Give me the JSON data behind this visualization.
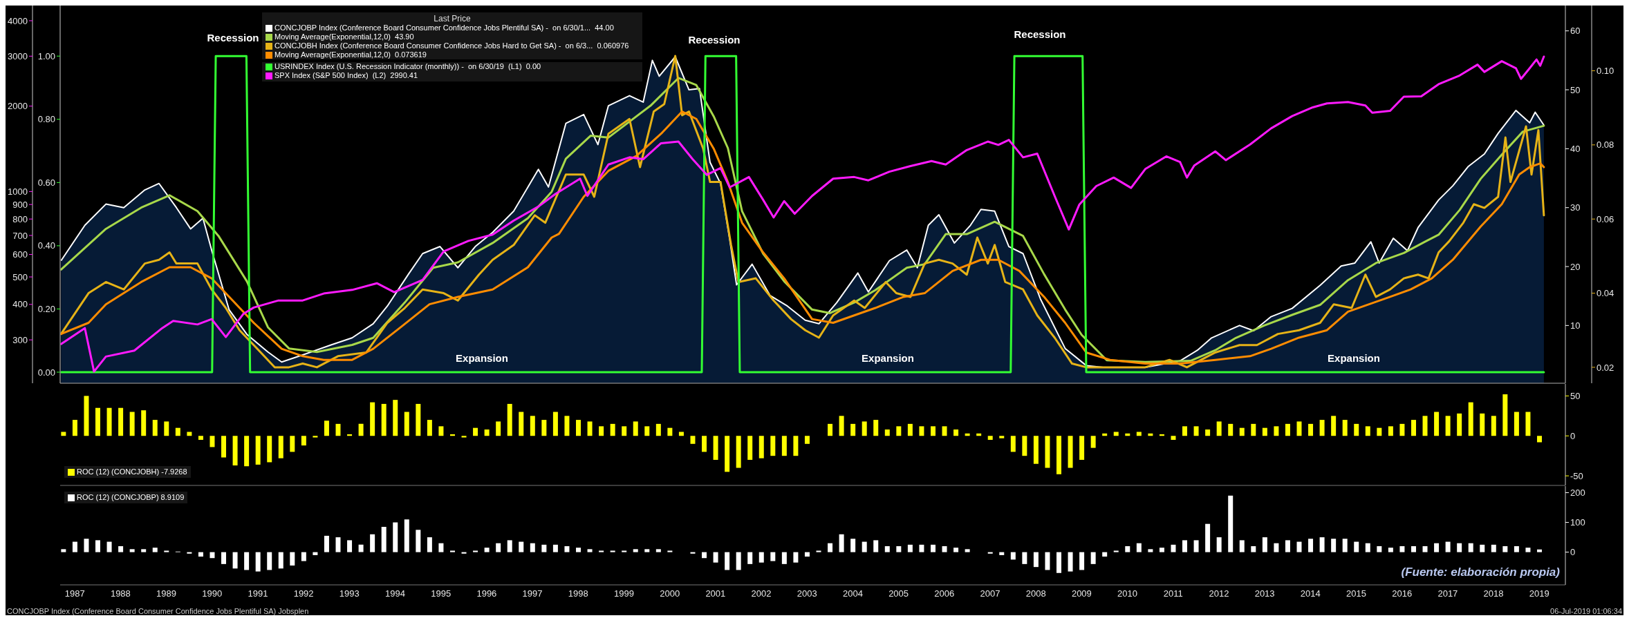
{
  "chart_data": [
    {
      "type": "area",
      "legend_title": "Last Price",
      "legend": "top left",
      "tick_labels": "y",
      "xlim": [
        1987.18,
        2020.07
      ],
      "ylim": [
        0.2,
        64.3
      ],
      "yticks": [
        10,
        20,
        30,
        40,
        50,
        60
      ],
      "y2lim": [
        0.0157,
        0.1176
      ],
      "y2ticks": [
        0.02,
        0.04,
        0.06,
        0.08,
        {
          "value": 0.1,
          "label": "0.10"
        }
      ],
      "series": [
        {
          "name": "CONCJOBP Index (Conference Board Consumer Confidence Jobs Plentiful SA) -  on 6/30/1...  44.00",
          "color": "#ffffff",
          "x": [
            1987.2,
            1987.72,
            1988.18,
            1988.57,
            1989.03,
            1989.34,
            1989.72,
            1990.03,
            1990.3,
            1990.49,
            1990.87,
            1991.26,
            1991.72,
            1992.02,
            1992.48,
            1993.1,
            1993.56,
            1994.02,
            1994.33,
            1994.79,
            1995.1,
            1995.48,
            1995.87,
            1996.25,
            1996.63,
            1997.09,
            1997.63,
            1997.85,
            1998.23,
            1998.62,
            1998.93,
            1999.16,
            1999.62,
            1999.92,
            2000.12,
            2000.27,
            2000.62,
            2000.92,
            2001.15,
            2001.38,
            2001.61,
            2001.81,
            2001.96,
            2002.3,
            2002.69,
            2003.07,
            2003.46,
            2003.76,
            2004.15,
            2004.61,
            2004.84,
            2005.3,
            2005.68,
            2005.91,
            2006.15,
            2006.38,
            2006.72,
            2007.07,
            2007.3,
            2007.6,
            2007.91,
            2008.22,
            2008.6,
            2009.14,
            2009.6,
            2009.97,
            2010.89,
            2011.65,
            2012.03,
            2012.34,
            2012.95,
            2013.26,
            2013.64,
            2014.1,
            2014.71,
            2015.17,
            2015.47,
            2015.82,
            2016.0,
            2016.31,
            2016.62,
            2016.85,
            2017.3,
            2017.61,
            2017.95,
            2018.3,
            2018.6,
            2018.99,
            2019.29,
            2019.41,
            2019.6
          ],
          "values": [
            21,
            27,
            30.6,
            30,
            33,
            34.1,
            30,
            26.4,
            28.2,
            22.8,
            12.7,
            8.5,
            5.5,
            3.8,
            5,
            6.7,
            7.9,
            10.3,
            13.3,
            18.7,
            22.2,
            23.4,
            19.8,
            23.4,
            25.8,
            29.4,
            36.5,
            33.5,
            44.3,
            45.8,
            40.7,
            47.3,
            49,
            47.9,
            55,
            52.3,
            55.6,
            50,
            50.2,
            37.7,
            34.1,
            24.6,
            16.9,
            20.4,
            15.1,
            13.3,
            10.9,
            10.3,
            13.9,
            18.9,
            15.7,
            21,
            22.8,
            19.8,
            27,
            28.8,
            24,
            27,
            29.7,
            29.4,
            23.4,
            22.2,
            14.5,
            6.1,
            3.2,
            2.9,
            2.9,
            4,
            5.8,
            7.9,
            10,
            9.1,
            11.5,
            12.9,
            16.8,
            20.1,
            20.6,
            24.2,
            20.6,
            24.8,
            22.7,
            26.6,
            31.3,
            33.7,
            37,
            39.1,
            42.6,
            46.5,
            44.4,
            46.2,
            44
          ]
        },
        {
          "type": "line",
          "name": "Moving Average(Exponential,12,0)  43.90",
          "color": "#a8d84a",
          "x": [
            1987.2,
            1988.18,
            1988.95,
            1989.57,
            1990.18,
            1990.64,
            1991.26,
            1991.72,
            1992.18,
            1992.79,
            1993.56,
            1994.02,
            1994.71,
            1995.33,
            1995.87,
            1996.63,
            1997.4,
            1997.92,
            1998.23,
            1998.77,
            1999.16,
            1999.62,
            2000.08,
            2000.69,
            2001.08,
            2001.46,
            2001.77,
            2002.08,
            2002.54,
            2003.0,
            2003.61,
            2004.0,
            2004.53,
            2004.99,
            2005.68,
            2006.07,
            2006.53,
            2006.99,
            2007.6,
            2008.22,
            2008.68,
            2009.14,
            2009.5,
            2010.05,
            2010.89,
            2011.88,
            2012.42,
            2012.87,
            2013.49,
            2014.1,
            2014.71,
            2015.32,
            2015.93,
            2016.54,
            2017.0,
            2017.3,
            2017.76,
            2018.22,
            2018.68,
            2019.14,
            2019.6
          ],
          "values": [
            19.5,
            26.4,
            30,
            32.1,
            29.4,
            25.2,
            17.5,
            9.7,
            6.1,
            5.5,
            6.7,
            7.9,
            13.9,
            19.8,
            20.7,
            24,
            28.2,
            32.7,
            38.3,
            42.2,
            41.9,
            44.6,
            47.3,
            52,
            50.8,
            45.5,
            40.1,
            29.4,
            22.2,
            17.5,
            12.7,
            12.1,
            13.9,
            16,
            19.8,
            20.4,
            25.5,
            25.5,
            27.6,
            25.2,
            18.7,
            12.7,
            8.4,
            4.1,
            3.8,
            4,
            5.8,
            7.9,
            10,
            11.8,
            13.5,
            17.7,
            20.6,
            22.3,
            24.2,
            25.4,
            29.6,
            34.9,
            39,
            42.9,
            43.9
          ]
        },
        {
          "type": "line",
          "axis": "y2",
          "name": "CONCJOBH Index (Conference Board Consumer Confidence Jobs Hard to Get SA) -  on 6/3...  0.060976",
          "color": "#e6b317",
          "x": [
            1987.2,
            1987.8,
            1988.18,
            1988.57,
            1989.03,
            1989.34,
            1989.57,
            1989.72,
            1990.18,
            1990.49,
            1990.8,
            1991.1,
            1991.41,
            1991.87,
            1992.18,
            1992.48,
            1992.79,
            1993.25,
            1993.87,
            1994.33,
            1994.71,
            1995.1,
            1995.56,
            1995.87,
            1996.33,
            1996.63,
            1997.09,
            1997.55,
            1997.78,
            1998.23,
            1998.62,
            1998.85,
            1999.16,
            1999.62,
            1999.85,
            2000.15,
            2000.38,
            2000.62,
            2000.77,
            2000.92,
            2001.23,
            2001.38,
            2001.61,
            2001.84,
            2002.0,
            2002.38,
            2002.77,
            2003.15,
            2003.46,
            2003.76,
            2004.07,
            2004.53,
            2004.76,
            2005.22,
            2005.45,
            2005.76,
            2006.07,
            2006.38,
            2006.68,
            2006.99,
            2007.22,
            2007.45,
            2007.6,
            2007.83,
            2008.22,
            2008.53,
            2008.91,
            2009.29,
            2009.6,
            2010.12,
            2010.89,
            2011.42,
            2011.8,
            2012.42,
            2012.95,
            2013.33,
            2013.79,
            2014.25,
            2014.71,
            2015.01,
            2015.4,
            2015.7,
            2015.93,
            2016.24,
            2016.54,
            2016.85,
            2017.08,
            2017.3,
            2017.53,
            2017.84,
            2018.07,
            2018.3,
            2018.6,
            2018.76,
            2018.87,
            2019.21,
            2019.33,
            2019.48,
            2019.6
          ],
          "values": [
            0.029,
            0.04,
            0.043,
            0.041,
            0.048,
            0.049,
            0.051,
            0.048,
            0.048,
            0.041,
            0.036,
            0.03,
            0.026,
            0.02,
            0.02,
            0.021,
            0.02,
            0.023,
            0.024,
            0.032,
            0.036,
            0.041,
            0.04,
            0.038,
            0.045,
            0.049,
            0.053,
            0.061,
            0.059,
            0.072,
            0.072,
            0.066,
            0.083,
            0.087,
            0.074,
            0.089,
            0.091,
            0.104,
            0.088,
            0.089,
            0.079,
            0.07,
            0.07,
            0.053,
            0.043,
            0.044,
            0.038,
            0.033,
            0.03,
            0.028,
            0.034,
            0.038,
            0.036,
            0.043,
            0.04,
            0.039,
            0.048,
            0.049,
            0.048,
            0.045,
            0.055,
            0.048,
            0.053,
            0.043,
            0.041,
            0.034,
            0.028,
            0.021,
            0.02,
            0.02,
            0.02,
            0.022,
            0.02,
            0.024,
            0.026,
            0.026,
            0.029,
            0.03,
            0.032,
            0.037,
            0.036,
            0.045,
            0.039,
            0.041,
            0.044,
            0.045,
            0.044,
            0.051,
            0.054,
            0.059,
            0.064,
            0.063,
            0.066,
            0.082,
            0.07,
            0.085,
            0.072,
            0.084,
            0.061
          ]
        },
        {
          "type": "line",
          "axis": "y2",
          "name": "Moving Average(Exponential,12,0)  0.073619",
          "color": "#ff8c00",
          "x": [
            1987.2,
            1987.8,
            1988.18,
            1988.95,
            1989.57,
            1990.03,
            1990.49,
            1990.95,
            1991.41,
            1992.02,
            1992.48,
            1992.94,
            1993.56,
            1994.02,
            1994.64,
            1995.25,
            1995.87,
            1996.63,
            1997.4,
            1997.92,
            1998.08,
            1998.62,
            1999.16,
            1999.77,
            2000.31,
            2000.77,
            2001.08,
            2001.46,
            2001.77,
            2002.08,
            2002.54,
            2003.0,
            2003.61,
            2004.07,
            2004.53,
            2004.99,
            2005.61,
            2006.07,
            2006.68,
            2007.3,
            2007.68,
            2008.14,
            2008.68,
            2009.14,
            2009.6,
            2010.12,
            2010.89,
            2011.65,
            2012.42,
            2013.18,
            2013.64,
            2014.25,
            2014.86,
            2015.32,
            2015.78,
            2016.24,
            2016.69,
            2017.15,
            2017.61,
            2018.22,
            2018.68,
            2019.06,
            2019.29,
            2019.52,
            2019.6
          ],
          "values": [
            0.029,
            0.032,
            0.037,
            0.043,
            0.047,
            0.047,
            0.044,
            0.038,
            0.032,
            0.025,
            0.023,
            0.022,
            0.022,
            0.025,
            0.031,
            0.037,
            0.039,
            0.041,
            0.047,
            0.055,
            0.056,
            0.066,
            0.073,
            0.077,
            0.083,
            0.089,
            0.087,
            0.079,
            0.07,
            0.059,
            0.051,
            0.044,
            0.033,
            0.032,
            0.034,
            0.036,
            0.039,
            0.04,
            0.046,
            0.049,
            0.049,
            0.046,
            0.039,
            0.032,
            0.024,
            0.022,
            0.021,
            0.021,
            0.022,
            0.023,
            0.025,
            0.028,
            0.03,
            0.035,
            0.037,
            0.039,
            0.041,
            0.044,
            0.049,
            0.058,
            0.064,
            0.072,
            0.074,
            0.075,
            0.074
          ]
        }
      ]
    },
    {
      "type": "line",
      "legend": "top left",
      "tick_labels": "y",
      "log": "y2",
      "xlim": [
        1987.18,
        2020.07
      ],
      "ylim": [
        -0.035,
        1.16
      ],
      "yticks": [
        {
          "value": 0,
          "label": "0.00"
        },
        {
          "value": 0.2,
          "label": "0.20"
        },
        {
          "value": 0.4,
          "label": "0.40"
        },
        {
          "value": 0.6,
          "label": "0.60"
        },
        {
          "value": 0.8,
          "label": "0.80"
        },
        {
          "value": 1,
          "label": "1.00"
        }
      ],
      "y2lim": [
        211,
        4525
      ],
      "y2ticks": [
        300,
        400,
        500,
        600,
        700,
        800,
        900,
        1000,
        2000,
        3000,
        4000
      ],
      "annotations": [
        "Recession",
        "Recession",
        "Recession",
        "Expansion",
        "Expansion",
        "Expansion"
      ],
      "series": [
        {
          "name": "USRINDEX Index (U.S. Recession Indicator (monthly)) -  on 6/30/19  (L1)  0.00",
          "color": "#33ff33",
          "x": [
            1987.2,
            1990.5,
            1990.58,
            1991.25,
            1991.33,
            2001.2,
            2001.28,
            2001.95,
            2002.03,
            2007.95,
            2008.03,
            2009.52,
            2009.6,
            2019.6
          ],
          "values": [
            0,
            0,
            1,
            1,
            0,
            0,
            1,
            1,
            0,
            0,
            1,
            1,
            0,
            0
          ]
        },
        {
          "axis": "y2",
          "name": "SPX Index (S&P 500 Index)  (L2)  2990.41",
          "color": "#ff1aff",
          "x": [
            1987.2,
            1987.72,
            1987.92,
            1988.18,
            1988.8,
            1989.41,
            1989.65,
            1990.18,
            1990.49,
            1990.8,
            1991.18,
            1991.41,
            1991.95,
            1992.48,
            1992.94,
            1993.56,
            1994.1,
            1994.48,
            1995.1,
            1995.56,
            1996.1,
            1996.63,
            1997.09,
            1997.63,
            1998.0,
            1998.54,
            1998.7,
            1999.16,
            1999.62,
            1999.92,
            2000.31,
            2000.69,
            2001.0,
            2001.31,
            2001.61,
            2001.81,
            2002.23,
            2002.54,
            2002.77,
            2003.0,
            2003.23,
            2003.61,
            2004.07,
            2004.53,
            2004.84,
            2005.3,
            2005.76,
            2006.22,
            2006.53,
            2006.99,
            2007.45,
            2007.68,
            2007.91,
            2008.22,
            2008.53,
            2008.91,
            2009.22,
            2009.45,
            2009.82,
            2010.2,
            2010.58,
            2010.89,
            2011.35,
            2011.65,
            2011.8,
            2011.96,
            2012.42,
            2012.65,
            2013.18,
            2013.64,
            2014.1,
            2014.55,
            2014.86,
            2015.32,
            2015.7,
            2015.85,
            2016.24,
            2016.54,
            2016.92,
            2017.3,
            2017.76,
            2018.15,
            2018.3,
            2018.68,
            2018.99,
            2019.1,
            2019.29,
            2019.44,
            2019.52,
            2019.6
          ],
          "values": [
            290,
            330,
            232,
            262,
            275,
            330,
            350,
            340,
            355,
            307,
            370,
            390,
            413,
            413,
            437,
            450,
            475,
            442,
            488,
            615,
            670,
            705,
            790,
            885,
            980,
            1110,
            965,
            1245,
            1320,
            1300,
            1480,
            1500,
            1300,
            1145,
            1210,
            1035,
            1125,
            935,
            810,
            925,
            835,
            965,
            1110,
            1125,
            1095,
            1175,
            1230,
            1280,
            1245,
            1400,
            1500,
            1460,
            1520,
            1320,
            1360,
            965,
            735,
            900,
            1045,
            1120,
            1030,
            1200,
            1330,
            1270,
            1120,
            1235,
            1385,
            1290,
            1465,
            1670,
            1845,
            1980,
            2045,
            2068,
            2010,
            1895,
            1925,
            2160,
            2165,
            2390,
            2565,
            2800,
            2640,
            2880,
            2720,
            2495,
            2720,
            2920,
            2775,
            2990
          ]
        }
      ]
    },
    {
      "type": "bar",
      "legend": "bottom left",
      "tick_labels": "y",
      "xlim": [
        1987.18,
        2020.07
      ],
      "x": [
        1987.25,
        1987.5,
        1987.75,
        1988,
        1988.25,
        1988.5,
        1988.75,
        1989,
        1989.25,
        1989.5,
        1989.75,
        1990,
        1990.25,
        1990.5,
        1990.75,
        1991,
        1991.25,
        1991.5,
        1991.75,
        1992,
        1992.25,
        1992.5,
        1992.75,
        1993,
        1993.25,
        1993.5,
        1993.75,
        1994,
        1994.25,
        1994.5,
        1994.75,
        1995,
        1995.25,
        1995.5,
        1995.75,
        1996,
        1996.25,
        1996.5,
        1996.75,
        1997,
        1997.25,
        1997.5,
        1997.75,
        1998,
        1998.25,
        1998.5,
        1998.75,
        1999,
        1999.25,
        1999.5,
        1999.75,
        2000,
        2000.25,
        2000.5,
        2000.75,
        2001,
        2001.25,
        2001.5,
        2001.75,
        2002,
        2002.25,
        2002.5,
        2002.75,
        2003,
        2003.25,
        2003.5,
        2003.75,
        2004,
        2004.25,
        2004.5,
        2004.75,
        2005,
        2005.25,
        2005.5,
        2005.75,
        2006,
        2006.25,
        2006.5,
        2006.75,
        2007,
        2007.25,
        2007.5,
        2007.75,
        2008,
        2008.25,
        2008.5,
        2008.75,
        2009,
        2009.25,
        2009.5,
        2009.75,
        2010,
        2010.25,
        2010.5,
        2010.75,
        2011,
        2011.25,
        2011.5,
        2011.75,
        2012,
        2012.25,
        2012.5,
        2012.75,
        2013,
        2013.25,
        2013.5,
        2013.75,
        2014,
        2014.25,
        2014.5,
        2014.75,
        2015,
        2015.25,
        2015.5,
        2015.75,
        2016,
        2016.25,
        2016.5,
        2016.75,
        2017,
        2017.25,
        2017.5,
        2017.75,
        2018,
        2018.25,
        2018.5,
        2018.75,
        2019,
        2019.25,
        2019.5
      ],
      "ylim": [
        -62,
        65
      ],
      "yticks": [
        -50,
        0,
        50
      ],
      "series": [
        {
          "name": "ROC (12) (CONCJOBH) -7.9268",
          "color": "#ffff00",
          "values": [
            5,
            20,
            50,
            35,
            35,
            35,
            30,
            32,
            20,
            18,
            10,
            5,
            -5,
            -14,
            -27,
            -37,
            -38,
            -36,
            -33,
            -28,
            -20,
            -12,
            -2,
            19,
            15,
            2,
            15,
            42,
            40,
            45,
            30,
            40,
            20,
            12,
            2,
            -2,
            10,
            8,
            18,
            40,
            30,
            25,
            20,
            30,
            25,
            20,
            18,
            12,
            15,
            12,
            18,
            12,
            15,
            10,
            5,
            -10,
            -20,
            -30,
            -45,
            -40,
            -30,
            -28,
            -25,
            -25,
            -25,
            -10,
            0,
            15,
            25,
            15,
            18,
            20,
            8,
            12,
            15,
            12,
            12,
            12,
            8,
            3,
            3,
            -5,
            -3,
            -20,
            -25,
            -35,
            -40,
            -48,
            -40,
            -30,
            -15,
            3,
            5,
            3,
            5,
            3,
            2,
            -5,
            12,
            12,
            8,
            18,
            15,
            10,
            15,
            10,
            12,
            15,
            18,
            15,
            20,
            25,
            20,
            15,
            12,
            10,
            12,
            15,
            20,
            25,
            30,
            25,
            28,
            42,
            28,
            25,
            52,
            30,
            30,
            -8
          ]
        }
      ]
    },
    {
      "type": "bar",
      "legend": "top left",
      "xlim": [
        1987.18,
        2020.07
      ],
      "xticks": [
        {
          "value": 1987.5,
          "label": "1987"
        },
        {
          "value": 1988.5,
          "label": "1988"
        },
        {
          "value": 1989.5,
          "label": "1989"
        },
        {
          "value": 1990.5,
          "label": "1990"
        },
        {
          "value": 1991.5,
          "label": "1991"
        },
        {
          "value": 1992.5,
          "label": "1992"
        },
        {
          "value": 1993.5,
          "label": "1993"
        },
        {
          "value": 1994.5,
          "label": "1994"
        },
        {
          "value": 1995.5,
          "label": "1995"
        },
        {
          "value": 1996.5,
          "label": "1996"
        },
        {
          "value": 1997.5,
          "label": "1997"
        },
        {
          "value": 1998.5,
          "label": "1998"
        },
        {
          "value": 1999.5,
          "label": "1999"
        },
        {
          "value": 2000.5,
          "label": "2000"
        },
        {
          "value": 2001.5,
          "label": "2001"
        },
        {
          "value": 2002.5,
          "label": "2002"
        },
        {
          "value": 2003.5,
          "label": "2003"
        },
        {
          "value": 2004.5,
          "label": "2004"
        },
        {
          "value": 2005.5,
          "label": "2005"
        },
        {
          "value": 2006.5,
          "label": "2006"
        },
        {
          "value": 2007.5,
          "label": "2007"
        },
        {
          "value": 2008.5,
          "label": "2008"
        },
        {
          "value": 2009.5,
          "label": "2009"
        },
        {
          "value": 2010.5,
          "label": "2010"
        },
        {
          "value": 2011.5,
          "label": "2011"
        },
        {
          "value": 2012.5,
          "label": "2012"
        },
        {
          "value": 2013.5,
          "label": "2013"
        },
        {
          "value": 2014.5,
          "label": "2014"
        },
        {
          "value": 2015.5,
          "label": "2015"
        },
        {
          "value": 2016.5,
          "label": "2016"
        },
        {
          "value": 2017.5,
          "label": "2017"
        },
        {
          "value": 2018.5,
          "label": "2018"
        },
        {
          "value": 2019.5,
          "label": "2019"
        }
      ],
      "x": [
        1987.25,
        1987.5,
        1987.75,
        1988,
        1988.25,
        1988.5,
        1988.75,
        1989,
        1989.25,
        1989.5,
        1989.75,
        1990,
        1990.25,
        1990.5,
        1990.75,
        1991,
        1991.25,
        1991.5,
        1991.75,
        1992,
        1992.25,
        1992.5,
        1992.75,
        1993,
        1993.25,
        1993.5,
        1993.75,
        1994,
        1994.25,
        1994.5,
        1994.75,
        1995,
        1995.25,
        1995.5,
        1995.75,
        1996,
        1996.25,
        1996.5,
        1996.75,
        1997,
        1997.25,
        1997.5,
        1997.75,
        1998,
        1998.25,
        1998.5,
        1998.75,
        1999,
        1999.25,
        1999.5,
        1999.75,
        2000,
        2000.25,
        2000.5,
        2000.75,
        2001,
        2001.25,
        2001.5,
        2001.75,
        2002,
        2002.25,
        2002.5,
        2002.75,
        2003,
        2003.25,
        2003.5,
        2003.75,
        2004,
        2004.25,
        2004.5,
        2004.75,
        2005,
        2005.25,
        2005.5,
        2005.75,
        2006,
        2006.25,
        2006.5,
        2006.75,
        2007,
        2007.25,
        2007.5,
        2007.75,
        2008,
        2008.25,
        2008.5,
        2008.75,
        2009,
        2009.25,
        2009.5,
        2009.75,
        2010,
        2010.25,
        2010.5,
        2010.75,
        2011,
        2011.25,
        2011.5,
        2011.75,
        2012,
        2012.25,
        2012.5,
        2012.75,
        2013,
        2013.25,
        2013.5,
        2013.75,
        2014,
        2014.25,
        2014.5,
        2014.75,
        2015,
        2015.25,
        2015.5,
        2015.75,
        2016,
        2016.25,
        2016.5,
        2016.75,
        2017,
        2017.25,
        2017.5,
        2017.75,
        2018,
        2018.25,
        2018.5,
        2018.75,
        2019,
        2019.25,
        2019.5
      ],
      "ylim": [
        -110,
        222
      ],
      "yticks": [
        0,
        100,
        200
      ],
      "annotations": [
        "(Fuente: elaboración propia)",
        "CONCJOBP Index (Conference Board Consumer Confidence Jobs Plentiful SA) Jobsplen",
        "06-Jul-2019 01:06:34"
      ],
      "series": [
        {
          "name": "ROC (12) (CONCJOBP) 8.9109",
          "color": "#ffffff",
          "values": [
            10,
            35,
            45,
            40,
            35,
            20,
            10,
            10,
            15,
            5,
            2,
            -5,
            -15,
            -20,
            -40,
            -55,
            -60,
            -65,
            -60,
            -55,
            -45,
            -30,
            -10,
            55,
            50,
            40,
            25,
            60,
            85,
            100,
            110,
            75,
            50,
            30,
            5,
            -5,
            5,
            15,
            30,
            40,
            35,
            30,
            25,
            25,
            20,
            15,
            10,
            5,
            5,
            5,
            10,
            10,
            10,
            5,
            0,
            -5,
            -20,
            -35,
            -60,
            -60,
            -40,
            -35,
            -30,
            -40,
            -35,
            -15,
            5,
            30,
            60,
            45,
            35,
            40,
            20,
            20,
            25,
            25,
            25,
            20,
            15,
            10,
            0,
            -5,
            -10,
            -25,
            -40,
            -50,
            -60,
            -70,
            -65,
            -60,
            -40,
            -15,
            5,
            20,
            30,
            10,
            15,
            25,
            40,
            40,
            95,
            50,
            190,
            40,
            20,
            50,
            30,
            40,
            35,
            45,
            50,
            45,
            45,
            35,
            30,
            20,
            15,
            20,
            20,
            20,
            30,
            35,
            30,
            30,
            25,
            25,
            20,
            20,
            15,
            9
          ]
        }
      ]
    }
  ]
}
